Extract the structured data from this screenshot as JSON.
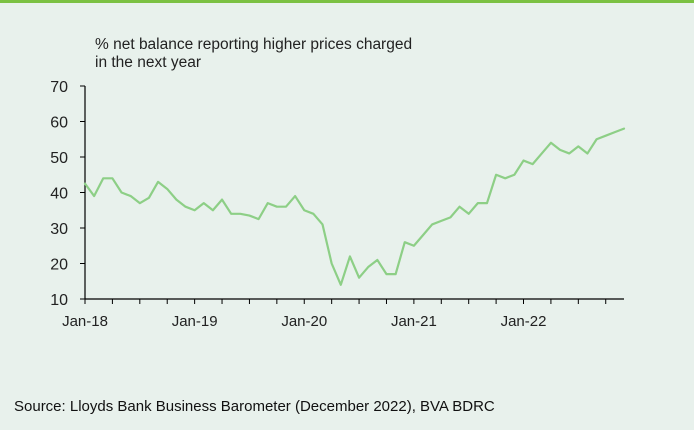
{
  "colors": {
    "accent_bar": "#7bc142",
    "line": "#8dcf86",
    "axis": "#000000",
    "background": "#e8f1ec"
  },
  "chart_data": {
    "type": "line",
    "title_lines": [
      "% net balance reporting higher prices charged",
      "in the next year"
    ],
    "ylim": [
      10,
      70
    ],
    "yticks": [
      10,
      20,
      30,
      40,
      50,
      60,
      70
    ],
    "xtick_labels": [
      "Jan-18",
      "Jan-19",
      "Jan-20",
      "Jan-21",
      "Jan-22"
    ],
    "xtick_index": [
      0,
      12,
      24,
      36,
      48
    ],
    "x": [
      "Jan-18",
      "Feb-18",
      "Mar-18",
      "Apr-18",
      "May-18",
      "Jun-18",
      "Jul-18",
      "Aug-18",
      "Sep-18",
      "Oct-18",
      "Nov-18",
      "Dec-18",
      "Jan-19",
      "Feb-19",
      "Mar-19",
      "Apr-19",
      "May-19",
      "Jun-19",
      "Jul-19",
      "Aug-19",
      "Sep-19",
      "Oct-19",
      "Nov-19",
      "Dec-19",
      "Jan-20",
      "Feb-20",
      "Mar-20",
      "Apr-20",
      "May-20",
      "Jun-20",
      "Jul-20",
      "Aug-20",
      "Sep-20",
      "Oct-20",
      "Nov-20",
      "Dec-20",
      "Jan-21",
      "Feb-21",
      "Mar-21",
      "Apr-21",
      "May-21",
      "Jun-21",
      "Jul-21",
      "Aug-21",
      "Sep-21",
      "Oct-21",
      "Nov-21",
      "Dec-21",
      "Jan-22",
      "Feb-22",
      "Mar-22",
      "Apr-22",
      "May-22",
      "Jun-22",
      "Jul-22",
      "Aug-22",
      "Sep-22",
      "Oct-22",
      "Nov-22",
      "Dec-22"
    ],
    "values": [
      42.5,
      39,
      44,
      44,
      40,
      39,
      37,
      38.5,
      43,
      41,
      38,
      36,
      35,
      37,
      35,
      38,
      34,
      34,
      33.5,
      32.5,
      37,
      36,
      36,
      39,
      35,
      34,
      31,
      20,
      14,
      22,
      16,
      19,
      21,
      17,
      17,
      26,
      25,
      28,
      31,
      32,
      33,
      36,
      34,
      37,
      37,
      45,
      44,
      45,
      49,
      48,
      51,
      54,
      52,
      51,
      53,
      51,
      55,
      56,
      57,
      58
    ],
    "grid": false,
    "legend": "none"
  },
  "source": "Source: Lloyds Bank Business Barometer (December 2022), BVA BDRC"
}
